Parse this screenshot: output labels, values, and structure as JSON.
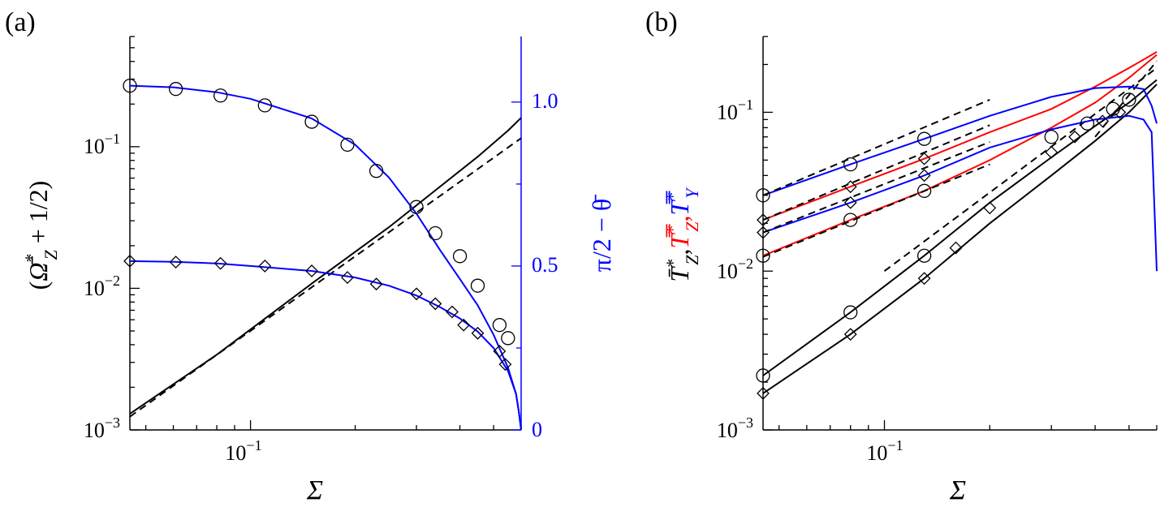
{
  "chart_data": [
    {
      "panel": "(a)",
      "type": "line",
      "xlabel": "Σ",
      "ylabel": "(Ω̄*Z + 1/2)",
      "ylabel_right": "π/2 − θ̄",
      "xscale": "log",
      "yscale": "log",
      "xlim": [
        0.045,
        0.6
      ],
      "ylim": [
        0.001,
        0.6
      ],
      "ylim_right": [
        0,
        1.2
      ],
      "x_tick_labels": [
        "10−1"
      ],
      "y_tick_labels": [
        "10−3",
        "10−2",
        "10−1"
      ],
      "y_right_tick_labels": [
        "0",
        "0.5",
        "1.0"
      ],
      "colors": {
        "black": "#000000",
        "blue": "#0000ff"
      },
      "series": [
        {
          "axis": "left",
          "color": "#000000",
          "style": "solid",
          "x": [
            0.045,
            0.08,
            0.15,
            0.25,
            0.35,
            0.45,
            0.55,
            0.6
          ],
          "y": [
            0.0013,
            0.0034,
            0.0108,
            0.027,
            0.052,
            0.085,
            0.13,
            0.16
          ]
        },
        {
          "axis": "left",
          "color": "#000000",
          "style": "dashed",
          "x": [
            0.045,
            0.6
          ],
          "y": [
            0.00124,
            0.115
          ]
        },
        {
          "axis": "right",
          "color": "#0000ff",
          "style": "solid",
          "marker": "circle",
          "x": [
            0.045,
            0.06,
            0.08,
            0.1,
            0.15,
            0.2,
            0.25,
            0.3,
            0.35,
            0.4,
            0.45,
            0.5,
            0.55,
            0.58,
            0.59,
            0.6
          ],
          "y": [
            1.05,
            1.045,
            1.03,
            1.01,
            0.95,
            0.87,
            0.77,
            0.66,
            0.55,
            0.46,
            0.38,
            0.29,
            0.19,
            0.11,
            0.06,
            0
          ]
        },
        {
          "axis": "right",
          "color": "#0000ff",
          "style": "solid",
          "marker": "diamond",
          "x": [
            0.045,
            0.06,
            0.08,
            0.1,
            0.15,
            0.2,
            0.25,
            0.3,
            0.35,
            0.4,
            0.45,
            0.5,
            0.55,
            0.58,
            0.59,
            0.6
          ],
          "y": [
            0.515,
            0.513,
            0.508,
            0.5,
            0.485,
            0.465,
            0.44,
            0.41,
            0.375,
            0.34,
            0.3,
            0.25,
            0.18,
            0.11,
            0.06,
            0
          ]
        }
      ],
      "markers": [
        {
          "shape": "circle",
          "axis": "right",
          "x": [
            0.045,
            0.061,
            0.082,
            0.11,
            0.15,
            0.19,
            0.23,
            0.3,
            0.34,
            0.4,
            0.45,
            0.52,
            0.55
          ],
          "y": [
            1.05,
            1.04,
            1.02,
            0.99,
            0.94,
            0.87,
            0.79,
            0.68,
            0.6,
            0.53,
            0.44,
            0.32,
            0.28
          ]
        },
        {
          "shape": "diamond",
          "axis": "right",
          "x": [
            0.045,
            0.061,
            0.082,
            0.11,
            0.15,
            0.19,
            0.23,
            0.3,
            0.34,
            0.38,
            0.41,
            0.45,
            0.52,
            0.54
          ],
          "y": [
            0.515,
            0.512,
            0.508,
            0.5,
            0.485,
            0.465,
            0.445,
            0.415,
            0.385,
            0.36,
            0.32,
            0.295,
            0.24,
            0.2
          ]
        }
      ]
    },
    {
      "panel": "(b)",
      "type": "line",
      "xlabel": "Σ",
      "ylabel_parts": [
        {
          "text": "T̄*Z,",
          "color": "#000000"
        },
        {
          "text": "T̿*Z,",
          "color": "#ff0000"
        },
        {
          "text": "T̿*Y",
          "color": "#0000ff"
        }
      ],
      "xscale": "log",
      "yscale": "log",
      "xlim": [
        0.045,
        0.6
      ],
      "ylim": [
        0.001,
        0.3
      ],
      "x_tick_labels": [
        "10−1"
      ],
      "y_tick_labels": [
        "10−3",
        "10−2",
        "10−1"
      ],
      "colors": {
        "black": "#000000",
        "red": "#ff0000",
        "blue": "#0000ff"
      },
      "series": [
        {
          "color": "#000000",
          "style": "solid",
          "marker": "circle",
          "x": [
            0.045,
            0.08,
            0.13,
            0.2,
            0.3,
            0.4,
            0.5,
            0.6
          ],
          "y": [
            0.0022,
            0.0055,
            0.0125,
            0.027,
            0.052,
            0.082,
            0.115,
            0.16
          ]
        },
        {
          "color": "#000000",
          "style": "solid",
          "marker": "diamond",
          "x": [
            0.045,
            0.08,
            0.13,
            0.2,
            0.3,
            0.4,
            0.5,
            0.6
          ],
          "y": [
            0.0017,
            0.004,
            0.009,
            0.02,
            0.04,
            0.066,
            0.1,
            0.15
          ]
        },
        {
          "color": "#000000",
          "style": "dashed",
          "x": [
            0.1,
            0.6
          ],
          "y": [
            0.01,
            0.19
          ]
        },
        {
          "color": "#000000",
          "style": "dashed",
          "x": [
            0.4,
            0.6
          ],
          "y": [
            0.07,
            0.21
          ]
        },
        {
          "color": "#ff0000",
          "style": "solid",
          "marker": "circle",
          "x": [
            0.045,
            0.08,
            0.13,
            0.2,
            0.3,
            0.4,
            0.5,
            0.6
          ],
          "y": [
            0.0125,
            0.021,
            0.032,
            0.05,
            0.08,
            0.115,
            0.165,
            0.23
          ]
        },
        {
          "color": "#ff0000",
          "style": "solid",
          "marker": "diamond",
          "x": [
            0.045,
            0.08,
            0.13,
            0.2,
            0.3,
            0.4,
            0.5,
            0.6
          ],
          "y": [
            0.021,
            0.034,
            0.051,
            0.075,
            0.105,
            0.145,
            0.19,
            0.24
          ]
        },
        {
          "color": "#0000ff",
          "style": "solid",
          "marker": "circle",
          "x": [
            0.045,
            0.08,
            0.13,
            0.2,
            0.3,
            0.4,
            0.5,
            0.55,
            0.58,
            0.6
          ],
          "y": [
            0.03,
            0.047,
            0.068,
            0.095,
            0.125,
            0.142,
            0.145,
            0.14,
            0.11,
            0.085
          ]
        },
        {
          "color": "#0000ff",
          "style": "solid",
          "marker": "diamond",
          "x": [
            0.045,
            0.08,
            0.13,
            0.2,
            0.3,
            0.4,
            0.5,
            0.55,
            0.58,
            0.6
          ],
          "y": [
            0.0175,
            0.027,
            0.04,
            0.06,
            0.078,
            0.09,
            0.095,
            0.09,
            0.075,
            0.01
          ]
        },
        {
          "color": "#000000",
          "style": "dashed",
          "x": [
            0.045,
            0.2
          ],
          "y": [
            0.03,
            0.12
          ]
        },
        {
          "color": "#000000",
          "style": "dashed",
          "x": [
            0.045,
            0.2
          ],
          "y": [
            0.021,
            0.083
          ]
        },
        {
          "color": "#000000",
          "style": "dashed",
          "x": [
            0.045,
            0.2
          ],
          "y": [
            0.0175,
            0.065
          ]
        },
        {
          "color": "#000000",
          "style": "dashed",
          "x": [
            0.045,
            0.2
          ],
          "y": [
            0.0123,
            0.047
          ]
        }
      ]
    }
  ],
  "labels": {
    "panel_a": "(a)",
    "panel_b": "(b)",
    "xlabel": "Σ",
    "tick_x": "10",
    "tick_x_exp": "−1",
    "tick_y_base": "10",
    "exp_m3": "−3",
    "exp_m2": "−2",
    "exp_m1": "−1",
    "right_0": "0",
    "right_05": "0.5",
    "right_10": "1.0",
    "ylabel_a_open": "(",
    "ylabel_a_sym": "Ω̄",
    "ylabel_a_sup": "*",
    "ylabel_a_sub": "Z",
    "ylabel_a_rest": " + 1/2)",
    "ylabel_a_right": "π/2 − θ̄",
    "ylabel_b_1": "T̄",
    "ylabel_b_1_sub": "Z",
    "ylabel_b_2": "T̿",
    "ylabel_b_2_sub": "Z",
    "ylabel_b_3": "T̿",
    "ylabel_b_3_sub": "Y",
    "star": "*",
    "comma": ","
  }
}
